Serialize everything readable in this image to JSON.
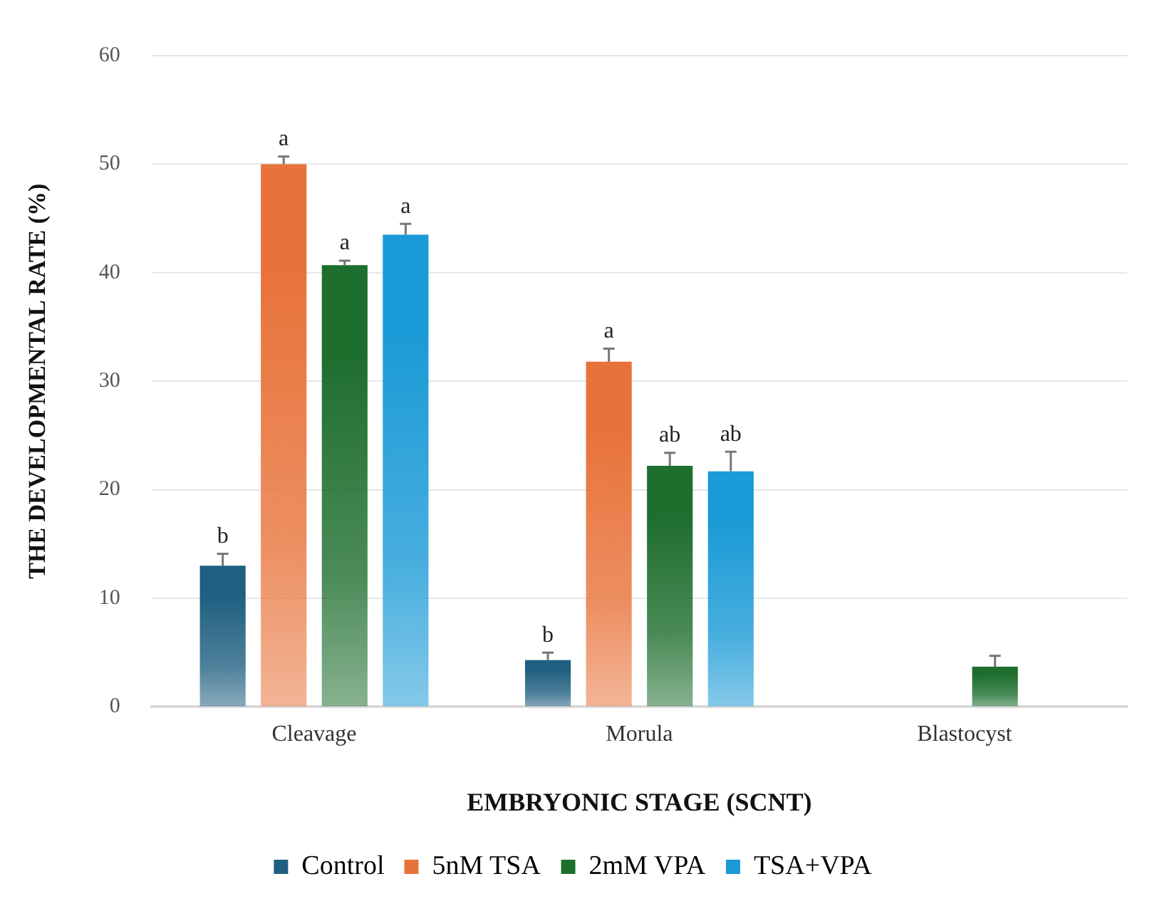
{
  "chart_data": {
    "type": "bar",
    "xlabel": "EMBRYONIC STAGE (SCNT)",
    "ylabel": "THE DEVELOPMENTAL RATE (%)",
    "categories": [
      "Cleavage",
      "Morula",
      "Blastocyst"
    ],
    "series": [
      {
        "name": "Control",
        "color": "#1f5f80",
        "values": [
          13.0,
          4.3,
          null
        ],
        "errors": [
          1.1,
          0.7,
          null
        ],
        "value_labels": [
          "b",
          "b",
          null
        ]
      },
      {
        "name": "5nM TSA",
        "color": "#e8733a",
        "values": [
          50.0,
          31.8,
          null
        ],
        "errors": [
          0.7,
          1.2,
          null
        ],
        "value_labels": [
          "a",
          "a",
          null
        ]
      },
      {
        "name": "2mM VPA",
        "color": "#1e6e2e",
        "values": [
          40.7,
          22.2,
          3.7
        ],
        "errors": [
          0.4,
          1.2,
          1.0
        ],
        "value_labels": [
          "a",
          "ab",
          null
        ]
      },
      {
        "name": "TSA+VPA",
        "color": "#1a9ad6",
        "values": [
          43.5,
          21.7,
          null
        ],
        "errors": [
          1.0,
          1.8,
          null
        ],
        "value_labels": [
          "a",
          "ab",
          null
        ]
      }
    ],
    "ylim": [
      0,
      60
    ],
    "yticks": [
      0,
      10,
      20,
      30,
      40,
      50,
      60
    ],
    "grid": "y",
    "legend": "bottom"
  }
}
